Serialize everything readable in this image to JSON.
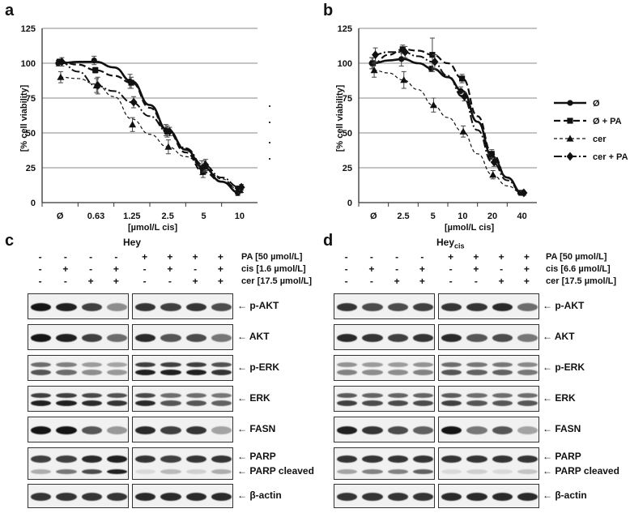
{
  "panels": {
    "a": "a",
    "b": "b",
    "c": "c",
    "d": "d"
  },
  "chart_data": [
    {
      "type": "line",
      "panel": "a",
      "title": "",
      "ylabel": "[% cell viability]",
      "xlabel": "[µmol/L cis]",
      "categories": [
        "Ø",
        "0.63",
        "1.25",
        "2.5",
        "5",
        "10"
      ],
      "ylim": [
        0,
        125
      ],
      "yticks": [
        0,
        25,
        50,
        75,
        100,
        125
      ],
      "grid": true,
      "series": [
        {
          "name": "Ø",
          "style": "solid-thick",
          "marker": "circle",
          "values": [
            100,
            102,
            87,
            52,
            25,
            7
          ],
          "errors": [
            2,
            3,
            5,
            4,
            5,
            2
          ],
          "fit": [
            [
              0,
              100
            ],
            [
              0.5,
              101
            ],
            [
              1,
              101
            ],
            [
              1.5,
              97
            ],
            [
              2,
              87
            ],
            [
              2.5,
              70
            ],
            [
              3,
              52
            ],
            [
              3.5,
              38
            ],
            [
              4,
              25
            ],
            [
              4.5,
              15
            ],
            [
              5,
              7
            ]
          ]
        },
        {
          "name": "Ø + PA",
          "style": "dashed-thick",
          "marker": "square",
          "values": [
            101,
            95,
            86,
            51,
            22,
            10
          ],
          "errors": [
            2,
            2,
            4,
            4,
            4,
            2
          ],
          "fit": [
            [
              0,
              101
            ],
            [
              0.5,
              99
            ],
            [
              1,
              95
            ],
            [
              1.5,
              91
            ],
            [
              2,
              86
            ],
            [
              2.5,
              68
            ],
            [
              3,
              51
            ],
            [
              3.5,
              36
            ],
            [
              4,
              22
            ],
            [
              4.5,
              15
            ],
            [
              5,
              10
            ]
          ]
        },
        {
          "name": "cer",
          "style": "dashed-thin",
          "marker": "triangle",
          "values": [
            90,
            84,
            56,
            40,
            26,
            9
          ],
          "errors": [
            4,
            5,
            5,
            5,
            4,
            2
          ],
          "fit": [
            [
              0,
              90
            ],
            [
              0.5,
              89
            ],
            [
              1,
              85
            ],
            [
              1.5,
              76
            ],
            [
              2,
              60
            ],
            [
              2.5,
              49
            ],
            [
              3,
              40
            ],
            [
              3.5,
              33
            ],
            [
              4,
              26
            ],
            [
              4.5,
              17
            ],
            [
              5,
              9
            ]
          ]
        },
        {
          "name": "cer + PA",
          "style": "dashdot-thick",
          "marker": "diamond",
          "values": [
            101,
            84,
            72,
            51,
            27,
            11
          ],
          "errors": [
            3,
            6,
            4,
            3,
            4,
            2
          ],
          "fit": [
            [
              0,
              101
            ],
            [
              0.5,
              94
            ],
            [
              1,
              84
            ],
            [
              1.5,
              80
            ],
            [
              2,
              72
            ],
            [
              2.5,
              62
            ],
            [
              3,
              51
            ],
            [
              3.5,
              39
            ],
            [
              4,
              27
            ],
            [
              4.5,
              18
            ],
            [
              5,
              11
            ]
          ]
        }
      ]
    },
    {
      "type": "line",
      "panel": "b",
      "title": "",
      "ylabel": "[% cell viability]",
      "xlabel": "[µmol/L cis]",
      "categories": [
        "Ø",
        "2.5",
        "5",
        "10",
        "20",
        "40"
      ],
      "ylim": [
        0,
        125
      ],
      "yticks": [
        0,
        25,
        50,
        75,
        100,
        125
      ],
      "grid": true,
      "series": [
        {
          "name": "Ø",
          "style": "solid-thick",
          "marker": "circle",
          "values": [
            100,
            103,
            96,
            80,
            33,
            7
          ],
          "errors": [
            4,
            5,
            2,
            3,
            2,
            1
          ],
          "fit": [
            [
              0,
              100
            ],
            [
              0.5,
              102
            ],
            [
              1,
              103
            ],
            [
              1.5,
              100
            ],
            [
              2,
              96
            ],
            [
              2.5,
              90
            ],
            [
              3,
              80
            ],
            [
              3.5,
              58
            ],
            [
              4,
              33
            ],
            [
              4.5,
              18
            ],
            [
              5,
              7
            ]
          ]
        },
        {
          "name": "Ø + PA",
          "style": "dashed-thick",
          "marker": "square",
          "values": [
            100,
            110,
            106,
            89,
            35,
            7
          ],
          "errors": [
            4,
            3,
            12,
            3,
            3,
            1
          ],
          "fit": [
            [
              0,
              100
            ],
            [
              0.5,
              106
            ],
            [
              1,
              110
            ],
            [
              1.5,
              109
            ],
            [
              2,
              106
            ],
            [
              2.5,
              100
            ],
            [
              3,
              89
            ],
            [
              3.5,
              62
            ],
            [
              4,
              35
            ],
            [
              4.5,
              18
            ],
            [
              5,
              7
            ]
          ]
        },
        {
          "name": "cer",
          "style": "dashed-thin",
          "marker": "triangle",
          "values": [
            95,
            88,
            70,
            51,
            20,
            7
          ],
          "errors": [
            5,
            6,
            5,
            4,
            3,
            1
          ],
          "fit": [
            [
              0,
              95
            ],
            [
              0.5,
              93
            ],
            [
              1,
              88
            ],
            [
              1.5,
              81
            ],
            [
              2,
              70
            ],
            [
              2.5,
              61
            ],
            [
              3,
              51
            ],
            [
              3.5,
              35
            ],
            [
              4,
              20
            ],
            [
              4.5,
              12
            ],
            [
              5,
              7
            ]
          ]
        },
        {
          "name": "cer + PA",
          "style": "dashdot-thick",
          "marker": "diamond",
          "values": [
            106,
            108,
            101,
            76,
            29,
            7
          ],
          "errors": [
            5,
            4,
            5,
            3,
            3,
            1
          ],
          "fit": [
            [
              0,
              106
            ],
            [
              0.5,
              108
            ],
            [
              1,
              108
            ],
            [
              1.5,
              105
            ],
            [
              2,
              101
            ],
            [
              2.5,
              91
            ],
            [
              3,
              76
            ],
            [
              3.5,
              52
            ],
            [
              4,
              29
            ],
            [
              4.5,
              16
            ],
            [
              5,
              7
            ]
          ]
        }
      ]
    }
  ],
  "legend": {
    "items": [
      {
        "name": "Ø",
        "style": "solid-thick",
        "marker": "circle"
      },
      {
        "name": "Ø + PA",
        "style": "dashed-thick",
        "marker": "square"
      },
      {
        "name": "cer",
        "style": "dashed-thin",
        "marker": "triangle"
      },
      {
        "name": "cer + PA",
        "style": "dashdot-thick",
        "marker": "diamond"
      }
    ]
  },
  "blots": [
    {
      "panel": "c",
      "title": "Hey",
      "title_sub": "",
      "treatments": [
        {
          "name": "PA  [50 µmol/L]",
          "signs": [
            "-",
            "-",
            "-",
            "-",
            "+",
            "+",
            "+",
            "+"
          ]
        },
        {
          "name": "cis  [1.6 µmol/L]",
          "signs": [
            "-",
            "+",
            "-",
            "+",
            "-",
            "+",
            "-",
            "+"
          ]
        },
        {
          "name": "cer [17.5 µmol/L]",
          "signs": [
            "-",
            "-",
            "+",
            "+",
            "-",
            "-",
            "+",
            "+"
          ]
        }
      ],
      "rows": [
        {
          "label": "p-AKT",
          "double": false
        },
        {
          "label": "AKT",
          "double": false
        },
        {
          "label": "p-ERK",
          "double": true
        },
        {
          "label": "ERK",
          "double": true
        },
        {
          "label": "FASN",
          "double": false
        },
        {
          "label": "PARP",
          "label2": "PARP cleaved",
          "double": true
        },
        {
          "label": "β-actin",
          "double": false
        }
      ]
    },
    {
      "panel": "d",
      "title": "Hey",
      "title_sub": "cis",
      "treatments": [
        {
          "name": "PA  [50 µmol/L]",
          "signs": [
            "-",
            "-",
            "-",
            "-",
            "+",
            "+",
            "+",
            "+"
          ]
        },
        {
          "name": "cis  [6.6 µmol/L]",
          "signs": [
            "-",
            "+",
            "-",
            "+",
            "-",
            "+",
            "-",
            "+"
          ]
        },
        {
          "name": "cer [17.5 µmol/L]",
          "signs": [
            "-",
            "-",
            "+",
            "+",
            "-",
            "-",
            "+",
            "+"
          ]
        }
      ],
      "rows": [
        {
          "label": "p-AKT",
          "double": false
        },
        {
          "label": "AKT",
          "double": false
        },
        {
          "label": "p-ERK",
          "double": true
        },
        {
          "label": "ERK",
          "double": true
        },
        {
          "label": "FASN",
          "double": false
        },
        {
          "label": "PARP",
          "label2": "PARP cleaved",
          "double": true
        },
        {
          "label": "β-actin",
          "double": false
        }
      ]
    }
  ],
  "band_intensity": {
    "c": [
      [
        1.0,
        0.95,
        0.8,
        0.45,
        0.85,
        0.8,
        0.85,
        0.75
      ],
      [
        1.0,
        0.95,
        0.8,
        0.6,
        0.9,
        0.7,
        0.75,
        0.55
      ],
      [
        0.7,
        0.6,
        0.45,
        0.4,
        0.95,
        0.95,
        0.95,
        0.85
      ],
      [
        0.95,
        0.95,
        0.9,
        0.85,
        0.9,
        0.7,
        0.7,
        0.65
      ],
      [
        1.0,
        1.0,
        0.7,
        0.4,
        0.9,
        0.8,
        0.85,
        0.35
      ],
      [
        0.8,
        0.8,
        0.9,
        0.95,
        0.85,
        0.8,
        0.85,
        0.85
      ],
      [
        0.85,
        0.85,
        0.85,
        0.85,
        0.9,
        0.9,
        0.9,
        0.9
      ]
    ],
    "d": [
      [
        0.85,
        0.75,
        0.75,
        0.8,
        0.85,
        0.85,
        0.9,
        0.6
      ],
      [
        0.9,
        0.85,
        0.8,
        0.85,
        0.9,
        0.7,
        0.75,
        0.55
      ],
      [
        0.5,
        0.45,
        0.45,
        0.5,
        0.7,
        0.65,
        0.65,
        0.55
      ],
      [
        0.8,
        0.75,
        0.75,
        0.75,
        0.8,
        0.7,
        0.7,
        0.7
      ],
      [
        0.95,
        0.85,
        0.75,
        0.65,
        1.0,
        0.55,
        0.7,
        0.35
      ],
      [
        0.85,
        0.85,
        0.85,
        0.85,
        0.85,
        0.85,
        0.85,
        0.85
      ],
      [
        0.85,
        0.85,
        0.85,
        0.85,
        0.9,
        0.9,
        0.9,
        0.9
      ]
    ],
    "cleaved_c": [
      0.3,
      0.55,
      0.75,
      0.95,
      0.1,
      0.25,
      0.15,
      0.3
    ],
    "cleaved_d": [
      0.35,
      0.5,
      0.5,
      0.65,
      0.1,
      0.15,
      0.1,
      0.2
    ]
  }
}
